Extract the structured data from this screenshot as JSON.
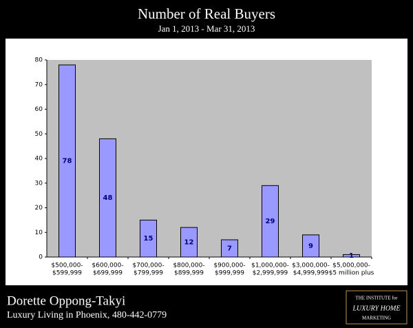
{
  "chart_data": {
    "type": "bar",
    "title": "Number of Real Buyers",
    "subtitle": "Jan 1, 2013 - Mar 31, 2013",
    "categories": [
      [
        "$500,000-",
        "$599,999"
      ],
      [
        "$600,000-",
        "$699,999"
      ],
      [
        "$700,000-",
        "$799,999"
      ],
      [
        "$800,000-",
        "$899,999"
      ],
      [
        "$900,000-",
        "$999,999"
      ],
      [
        "$1,000,000-",
        "$2,999,999"
      ],
      [
        "$3,000,000-",
        "$4,999,999"
      ],
      [
        "$5,000,000-",
        "$5 million plus"
      ]
    ],
    "values": [
      78,
      48,
      15,
      12,
      7,
      29,
      9,
      1
    ],
    "color": "#9999ff",
    "ylim": [
      0,
      80
    ],
    "yticks": [
      0,
      10,
      20,
      30,
      40,
      50,
      60,
      70,
      80
    ],
    "grid": false
  },
  "footer": {
    "name": "Dorette Oppong-Takyi",
    "tagline": "Luxury Living in Phoenix, 480-442-0779",
    "logo": [
      "THE INSTITUTE for",
      "LUXURY HOME",
      "MARKETING"
    ]
  }
}
